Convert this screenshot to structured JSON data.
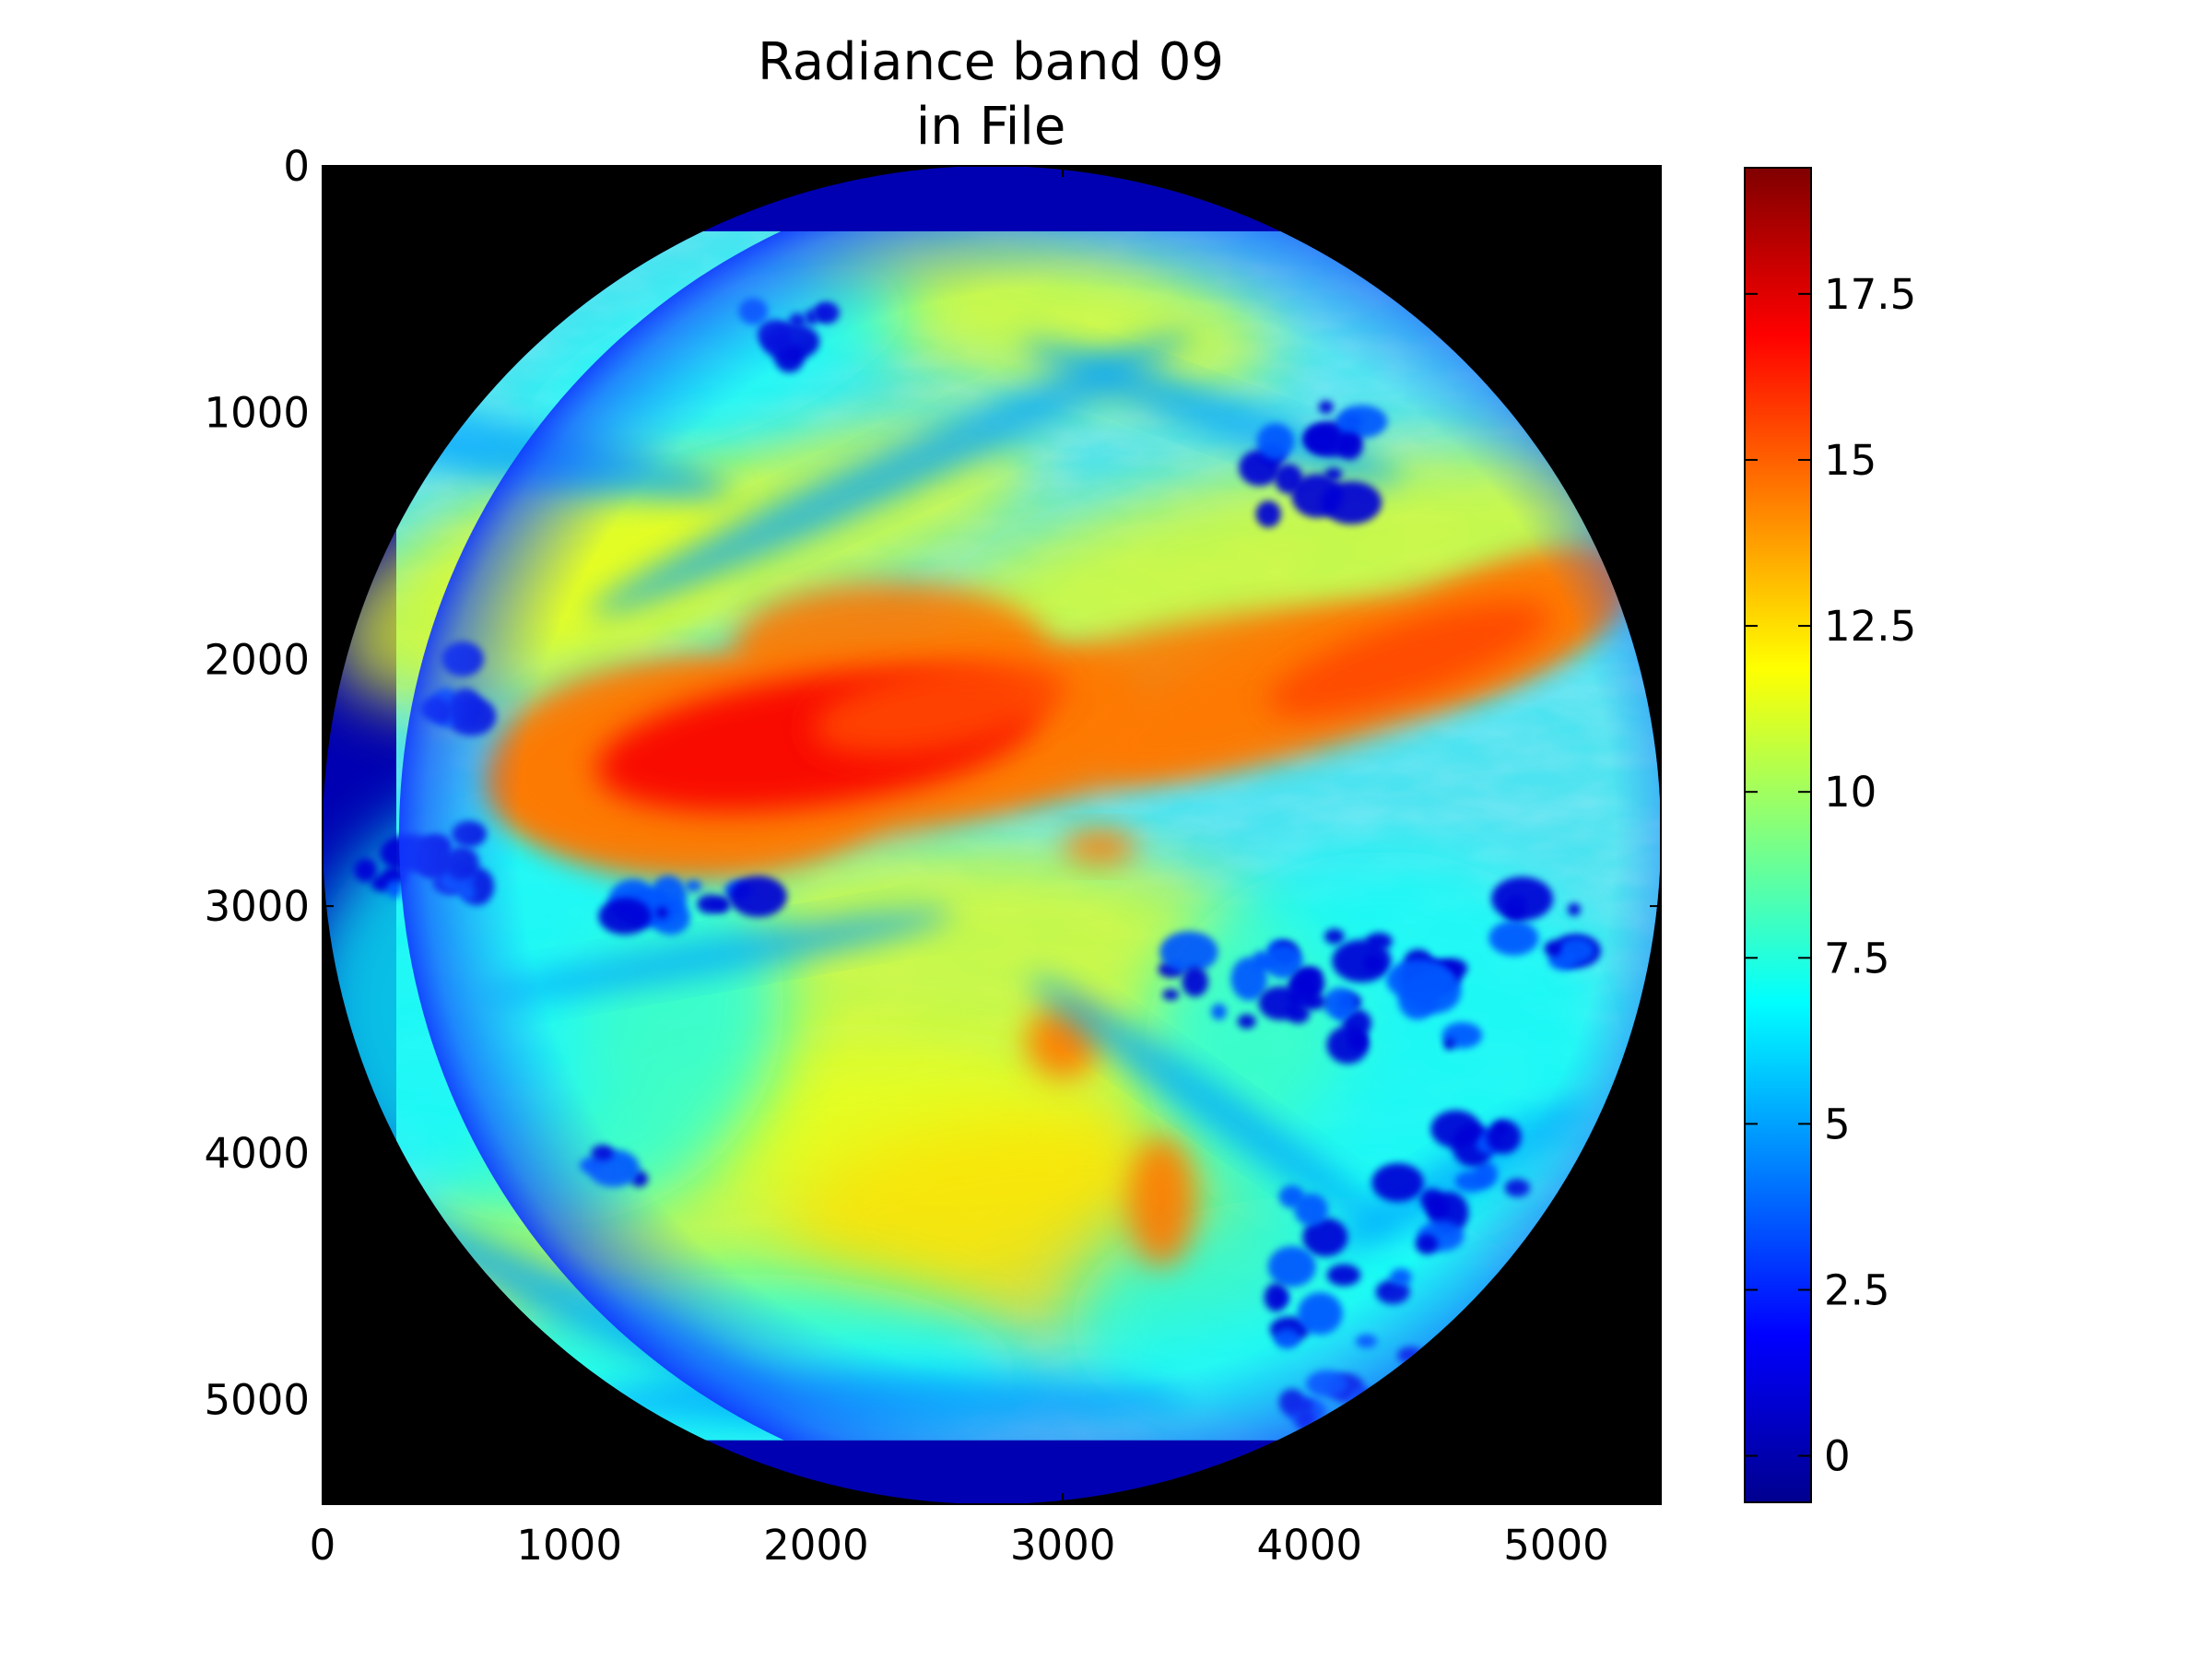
{
  "chart_data": {
    "type": "heatmap",
    "title_lines": [
      "Radiance band 09",
      "in File"
    ],
    "xlabel": "",
    "ylabel": "",
    "xlim": [
      0,
      5424
    ],
    "ylim": [
      5424,
      0
    ],
    "x_ticks": [
      0,
      1000,
      2000,
      3000,
      4000,
      5000
    ],
    "y_ticks": [
      0,
      1000,
      2000,
      3000,
      4000,
      5000
    ],
    "colormap": "jet",
    "background_color": "#000000",
    "disk_center": [
      2712,
      2712
    ],
    "disk_radius": 2712,
    "visible_disk_rows": [
      265,
      5165
    ],
    "outside_rows_value": 0.3,
    "colorbar": {
      "range": [
        -0.7,
        19.4
      ],
      "ticks": [
        0,
        2.5,
        5,
        7.5,
        10,
        12.5,
        15,
        17.5
      ],
      "tick_labels": [
        "0",
        "2.5",
        "5",
        "7.5",
        "10",
        "12.5",
        "15",
        "17.5"
      ]
    },
    "regions": [
      {
        "description": "dry band maximum (orange/red)",
        "x": [
          800,
          5100
        ],
        "y": [
          1650,
          2750
        ],
        "value_range": [
          13,
          17.5
        ]
      },
      {
        "description": "moist convective clusters (dark blue)",
        "x": [
          150,
          5100
        ],
        "y": [
          2850,
          5000
        ],
        "value_range": [
          0,
          3
        ]
      },
      {
        "description": "mid-latitude background",
        "x": [
          0,
          5424
        ],
        "y": [
          0,
          5424
        ],
        "value_range": [
          5,
          11
        ]
      }
    ]
  }
}
